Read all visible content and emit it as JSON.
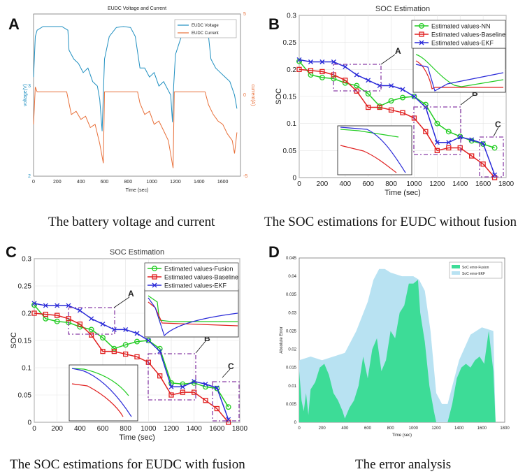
{
  "panels": {
    "A": {
      "label": "A",
      "caption": "The battery voltage and current"
    },
    "B": {
      "label": "B",
      "caption": "The SOC estimations for EUDC without fusion"
    },
    "C": {
      "label": "C",
      "caption": "The SOC estimations for EUDC with fusion"
    },
    "D": {
      "label": "D",
      "caption": "The error analysis"
    }
  },
  "colors": {
    "voltage": "#1f8fc0",
    "current": "#e8703a",
    "nn": "#22cc22",
    "fusion": "#22cc22",
    "baseline": "#e02020",
    "ekf": "#2a2ad8",
    "box": "#8a3fa8",
    "err_fusion": "#3ddc97",
    "err_ekf": "#b8e2f2"
  },
  "chart_data": [
    {
      "id": "A",
      "type": "line",
      "title": "EUDC Voltage and Current",
      "xlabel": "Time (sec)",
      "ylabel": "voltage(V)",
      "ylabel_right": "current(A)",
      "xlim": [
        0,
        1750
      ],
      "xticks": [
        0,
        200,
        400,
        600,
        800,
        1000,
        1200,
        1400,
        1600
      ],
      "ylim": [
        2,
        3.8
      ],
      "yticks": [
        2,
        3
      ],
      "ylim_right": [
        -5,
        5
      ],
      "yticks_right": [
        -5,
        0,
        5
      ],
      "legend": [
        "EUDC Voltage",
        "EUDC Current"
      ],
      "series": [
        {
          "name": "EUDC Voltage",
          "axis": "left",
          "x": [
            0,
            15,
            30,
            80,
            160,
            240,
            290,
            300,
            340,
            380,
            420,
            460,
            500,
            540,
            560,
            580,
            590,
            600,
            640,
            700,
            760,
            820,
            860,
            900,
            940,
            980,
            1020,
            1060,
            1100,
            1140,
            1160,
            1175,
            1185,
            1200,
            1250,
            1320,
            1400,
            1450,
            1480,
            1500,
            1540,
            1580,
            1620,
            1660,
            1700,
            1720
          ],
          "y": [
            3.1,
            3.55,
            3.62,
            3.66,
            3.66,
            3.66,
            3.62,
            3.4,
            3.3,
            3.25,
            3.15,
            3.2,
            3.05,
            3.0,
            2.85,
            2.5,
            2.9,
            3.3,
            3.55,
            3.65,
            3.66,
            3.65,
            3.55,
            3.2,
            3.2,
            3.1,
            3.15,
            3.0,
            3.05,
            2.95,
            2.9,
            2.6,
            3.0,
            3.35,
            3.55,
            3.63,
            3.63,
            3.6,
            3.55,
            3.3,
            3.2,
            3.15,
            3.1,
            3.05,
            2.9,
            2.75
          ]
        },
        {
          "name": "EUDC Current",
          "axis": "right",
          "x": [
            0,
            15,
            30,
            280,
            300,
            320,
            360,
            400,
            440,
            480,
            520,
            560,
            590,
            600,
            880,
            900,
            940,
            980,
            1020,
            1060,
            1100,
            1140,
            1180,
            1190,
            1450,
            1480,
            1520,
            1560,
            1600,
            1640,
            1680,
            1700,
            1720
          ],
          "y": [
            -1.8,
            0.5,
            0.2,
            0.2,
            -0.5,
            -1.2,
            -1.0,
            -1.5,
            -1.3,
            -2.0,
            -1.8,
            -3.0,
            -4.2,
            0.2,
            0.2,
            -0.5,
            -1.2,
            -1.0,
            -1.8,
            -1.6,
            -2.2,
            -2.8,
            -4.5,
            0.2,
            0.2,
            -0.6,
            -1.2,
            -1.6,
            -1.8,
            -2.4,
            -2.8,
            -3.6,
            -2.3
          ]
        }
      ]
    },
    {
      "id": "B",
      "type": "line",
      "title": "SOC Estimation",
      "xlabel": "Time (sec)",
      "ylabel": "SOC",
      "xlim": [
        0,
        1800
      ],
      "ylim": [
        0,
        0.3
      ],
      "xticks": [
        0,
        200,
        400,
        600,
        800,
        1000,
        1200,
        1400,
        1600,
        1800
      ],
      "yticks": [
        0,
        0.05,
        0.1,
        0.15,
        0.2,
        0.25,
        0.3
      ],
      "legend": [
        "Estimated values-NN",
        "Estimated values-Baseline",
        "Estimated values-EKF"
      ],
      "annotations": [
        "A",
        "B",
        "C"
      ],
      "series": [
        {
          "name": "Estimated values-NN",
          "marker": "circle",
          "x": [
            0,
            100,
            200,
            300,
            400,
            500,
            600,
            700,
            800,
            900,
            1000,
            1100,
            1200,
            1300,
            1400,
            1500,
            1600,
            1700
          ],
          "y": [
            0.215,
            0.19,
            0.185,
            0.183,
            0.175,
            0.17,
            0.155,
            0.132,
            0.142,
            0.148,
            0.15,
            0.135,
            0.1,
            0.085,
            0.076,
            0.068,
            0.062,
            0.055
          ]
        },
        {
          "name": "Estimated values-Baseline",
          "marker": "square",
          "x": [
            0,
            100,
            200,
            300,
            400,
            500,
            600,
            700,
            800,
            900,
            1000,
            1100,
            1200,
            1300,
            1400,
            1500,
            1600,
            1700
          ],
          "y": [
            0.2,
            0.198,
            0.196,
            0.19,
            0.18,
            0.16,
            0.13,
            0.13,
            0.125,
            0.12,
            0.11,
            0.085,
            0.05,
            0.055,
            0.055,
            0.04,
            0.025,
            0.0
          ]
        },
        {
          "name": "Estimated values-EKF",
          "marker": "x",
          "x": [
            0,
            100,
            200,
            300,
            400,
            500,
            600,
            700,
            800,
            900,
            1000,
            1100,
            1200,
            1300,
            1400,
            1500,
            1600,
            1700
          ],
          "y": [
            0.218,
            0.214,
            0.214,
            0.214,
            0.205,
            0.19,
            0.18,
            0.17,
            0.17,
            0.163,
            0.15,
            0.13,
            0.065,
            0.065,
            0.075,
            0.07,
            0.063,
            0.005
          ]
        }
      ]
    },
    {
      "id": "C",
      "type": "line",
      "title": "SOC Estimation",
      "xlabel": "Time (sec)",
      "ylabel": "SOC",
      "xlim": [
        0,
        1800
      ],
      "ylim": [
        0,
        0.3
      ],
      "xticks": [
        0,
        200,
        400,
        600,
        800,
        1000,
        1200,
        1400,
        1600,
        1800
      ],
      "yticks": [
        0,
        0.05,
        0.1,
        0.15,
        0.2,
        0.25,
        0.3
      ],
      "legend": [
        "Estimated values-Fusion",
        "Estimated values-Baseline",
        "Estimated values-EKF"
      ],
      "annotations": [
        "A",
        "B",
        "C"
      ],
      "series": [
        {
          "name": "Estimated values-Fusion",
          "marker": "circle",
          "x": [
            0,
            100,
            200,
            300,
            400,
            500,
            600,
            700,
            800,
            900,
            1000,
            1100,
            1200,
            1300,
            1400,
            1500,
            1600,
            1700
          ],
          "y": [
            0.215,
            0.19,
            0.185,
            0.183,
            0.175,
            0.17,
            0.155,
            0.135,
            0.142,
            0.148,
            0.15,
            0.135,
            0.072,
            0.07,
            0.072,
            0.065,
            0.062,
            0.028
          ]
        },
        {
          "name": "Estimated values-Baseline",
          "marker": "square",
          "x": [
            0,
            100,
            200,
            300,
            400,
            500,
            600,
            700,
            800,
            900,
            1000,
            1100,
            1200,
            1300,
            1400,
            1500,
            1600,
            1700
          ],
          "y": [
            0.2,
            0.198,
            0.196,
            0.19,
            0.18,
            0.16,
            0.13,
            0.13,
            0.125,
            0.12,
            0.11,
            0.085,
            0.05,
            0.055,
            0.055,
            0.04,
            0.025,
            0.0
          ]
        },
        {
          "name": "Estimated values-EKF",
          "marker": "x",
          "x": [
            0,
            100,
            200,
            300,
            400,
            500,
            600,
            700,
            800,
            900,
            1000,
            1100,
            1200,
            1300,
            1400,
            1500,
            1600,
            1700
          ],
          "y": [
            0.218,
            0.214,
            0.214,
            0.214,
            0.205,
            0.19,
            0.18,
            0.17,
            0.17,
            0.163,
            0.15,
            0.13,
            0.065,
            0.065,
            0.075,
            0.07,
            0.063,
            0.005
          ]
        }
      ]
    },
    {
      "id": "D",
      "type": "area",
      "xlabel": "Time (sec)",
      "ylabel": "Absolute Error",
      "xlim": [
        0,
        1800
      ],
      "ylim": [
        0,
        0.045
      ],
      "xticks": [
        0,
        200,
        400,
        600,
        800,
        1000,
        1200,
        1400,
        1600,
        1800
      ],
      "yticks": [
        0,
        0.005,
        0.01,
        0.015,
        0.02,
        0.025,
        0.03,
        0.035,
        0.04,
        0.045
      ],
      "legend": [
        "SoC error-Fusion",
        "SoC error-EKF"
      ],
      "series": [
        {
          "name": "SoC error-EKF",
          "x": [
            0,
            100,
            200,
            300,
            400,
            500,
            600,
            650,
            700,
            750,
            800,
            900,
            1000,
            1050,
            1100,
            1150,
            1200,
            1250,
            1300,
            1400,
            1500,
            1600,
            1700,
            1720
          ],
          "y": [
            0.017,
            0.018,
            0.017,
            0.018,
            0.019,
            0.025,
            0.033,
            0.039,
            0.042,
            0.042,
            0.041,
            0.04,
            0.04,
            0.039,
            0.036,
            0.025,
            0.008,
            0.005,
            0.005,
            0.017,
            0.024,
            0.026,
            0.025,
            0.0
          ]
        },
        {
          "name": "SoC error-Fusion",
          "x": [
            0,
            20,
            40,
            60,
            80,
            100,
            140,
            180,
            220,
            260,
            300,
            340,
            380,
            400,
            440,
            480,
            520,
            560,
            600,
            640,
            680,
            720,
            760,
            800,
            840,
            880,
            920,
            960,
            1000,
            1040,
            1060,
            1100,
            1140,
            1180,
            1200,
            1300,
            1340,
            1380,
            1420,
            1460,
            1500,
            1540,
            1580,
            1620,
            1660,
            1700,
            1720
          ],
          "y": [
            0.014,
            0.006,
            0.003,
            0.008,
            0.002,
            0.009,
            0.011,
            0.015,
            0.016,
            0.013,
            0.008,
            0.006,
            0.003,
            0.001,
            0.004,
            0.006,
            0.01,
            0.018,
            0.012,
            0.02,
            0.023,
            0.014,
            0.017,
            0.025,
            0.023,
            0.03,
            0.032,
            0.038,
            0.038,
            0.039,
            0.03,
            0.022,
            0.01,
            0.003,
            0.0,
            0.0,
            0.005,
            0.012,
            0.015,
            0.016,
            0.015,
            0.017,
            0.018,
            0.016,
            0.025,
            0.014,
            0.0
          ]
        }
      ]
    }
  ]
}
